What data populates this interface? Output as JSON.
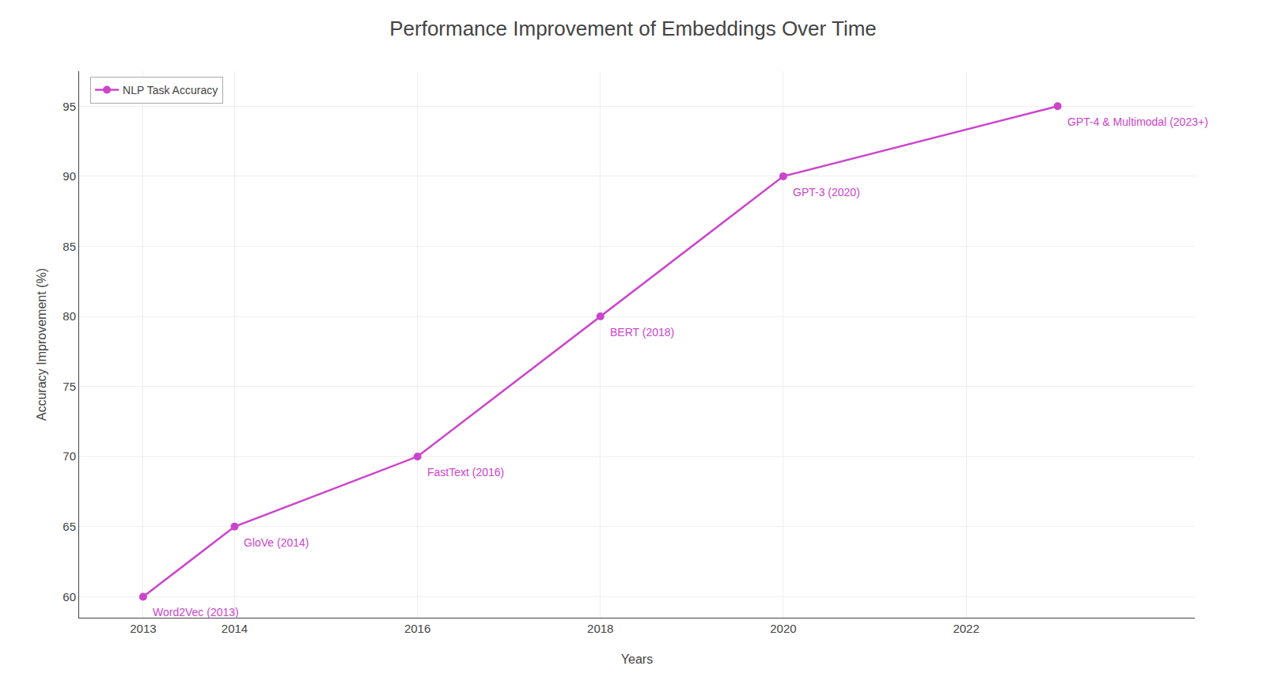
{
  "chart_data": {
    "type": "line",
    "title": "Performance Improvement of Embeddings Over Time",
    "xlabel": "Years",
    "ylabel": "Accuracy Improvement (%)",
    "x": [
      2013,
      2014,
      2016,
      2018,
      2020,
      2023
    ],
    "series": [
      {
        "name": "NLP Task Accuracy",
        "color": "#cc44cc",
        "marker": "circle",
        "line_style": "solid",
        "values": [
          60,
          65,
          70,
          80,
          90,
          95
        ]
      }
    ],
    "annotations": [
      {
        "text": "Word2Vec (2013)",
        "x": 2013,
        "y": 60
      },
      {
        "text": "GloVe (2014)",
        "x": 2014,
        "y": 65
      },
      {
        "text": "FastText (2016)",
        "x": 2016,
        "y": 70
      },
      {
        "text": "BERT (2018)",
        "x": 2018,
        "y": 80
      },
      {
        "text": "GPT-3 (2020)",
        "x": 2020,
        "y": 90
      },
      {
        "text": "GPT-4 & Multimodal (2023+)",
        "x": 2023,
        "y": 95
      }
    ],
    "xlim": [
      2012.3,
      2024.5
    ],
    "xticks": [
      2013,
      2014,
      2016,
      2018,
      2020,
      2022
    ],
    "ylim": [
      58.5,
      97.5
    ],
    "yticks": [
      60,
      65,
      70,
      75,
      80,
      85,
      90,
      95
    ],
    "grid": true,
    "legend": "upper left"
  }
}
